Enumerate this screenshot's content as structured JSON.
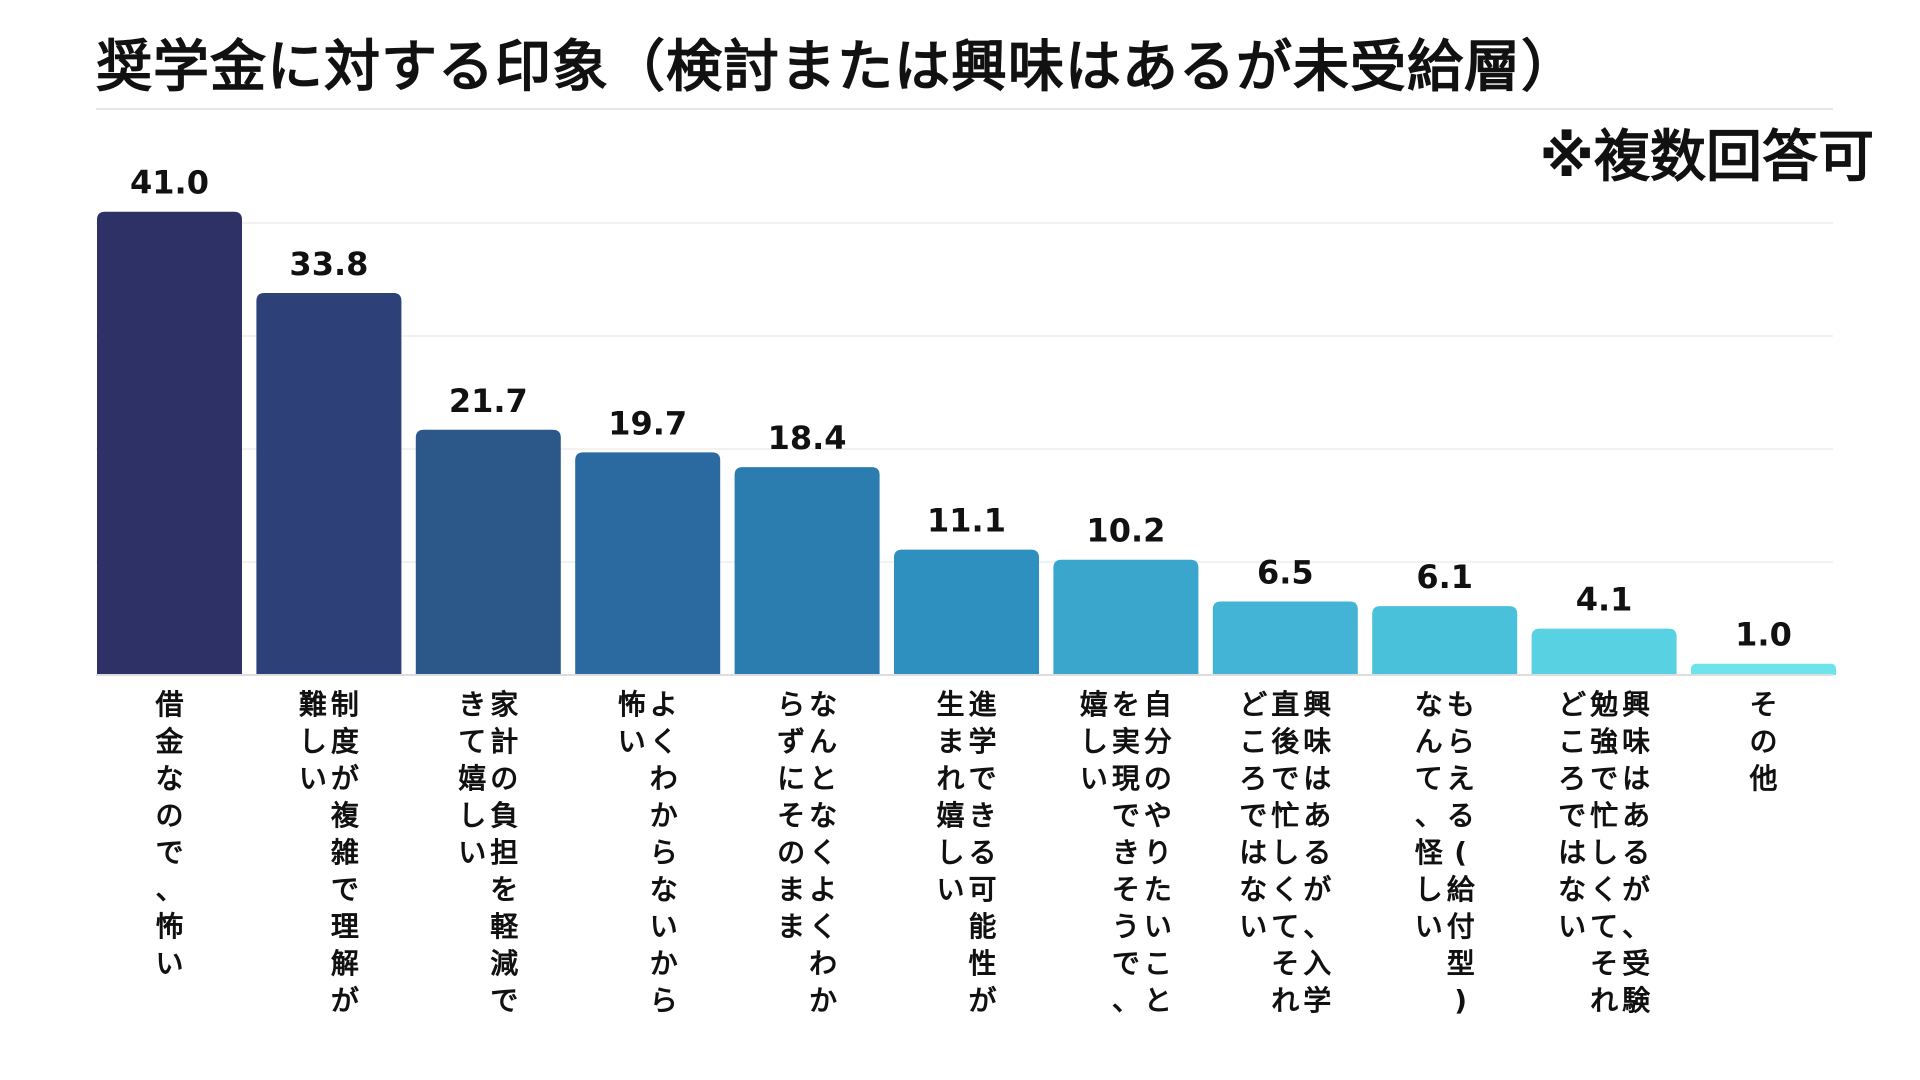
{
  "chart_data": {
    "type": "bar",
    "title": "奨学金に対する印象（検討または興味はあるが未受給層）",
    "note": "※複数回答可",
    "categories": [
      "借金なので、怖い",
      "制度が複雑で理解が難しい",
      "家計の負担を軽減できて嬉しい",
      "よくわからないから怖い",
      "なんとなくよくわからずにそのまま",
      "進学できる可能性が生まれ嬉しい",
      "自分のやりたいことを実現できそうで、嬉しい",
      "興味はあるが、入学直後で忙しくてそれどころではない",
      "もらえる(給付型)なんて、怪しい",
      "興味はあるが、受験勉強で忙しくてそれどころではない",
      "その他"
    ],
    "values": [
      41.0,
      33.8,
      21.7,
      19.7,
      18.4,
      11.1,
      10.2,
      6.5,
      6.1,
      4.1,
      1.0
    ],
    "value_labels": [
      "41.0",
      "33.8",
      "21.7",
      "19.7",
      "18.4",
      "11.1",
      "10.2",
      "6.5",
      "6.1",
      "4.1",
      "1.0"
    ],
    "ylim": [
      0,
      45
    ],
    "grid": true,
    "legend": "none",
    "bar_colors": [
      "#2d3165",
      "#2d4078",
      "#2c5889",
      "#2a6aa0",
      "#2b7db0",
      "#2e90bf",
      "#3aa6cc",
      "#43b3d6",
      "#4ac1da",
      "#58d2e3",
      "#6de3ec"
    ]
  }
}
